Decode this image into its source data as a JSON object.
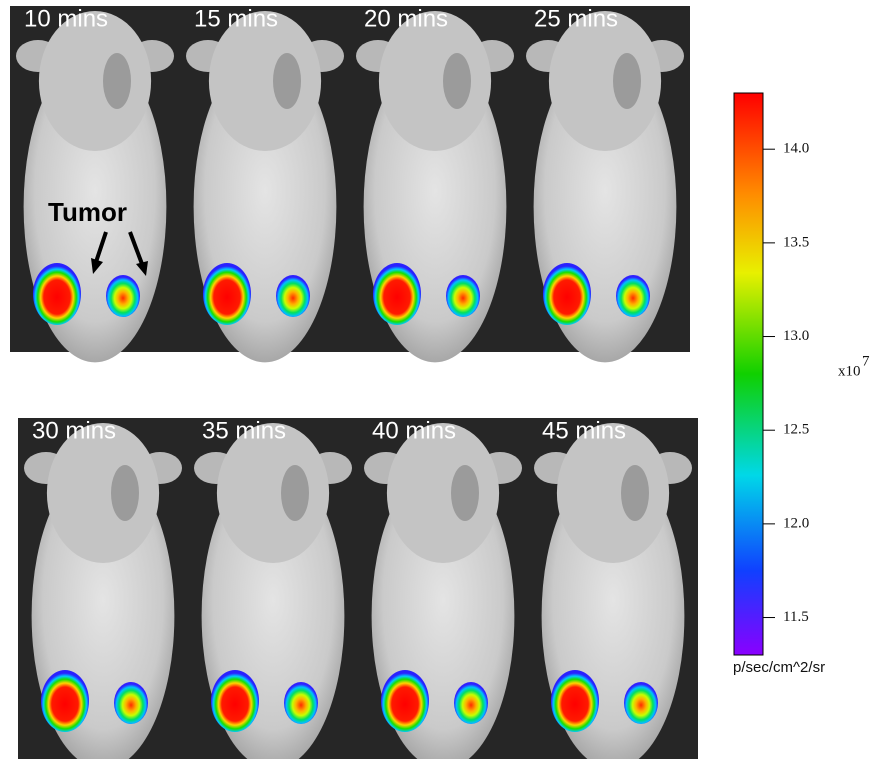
{
  "panels": {
    "top": [
      {
        "label": "10 mins"
      },
      {
        "label": "15 mins"
      },
      {
        "label": "20 mins"
      },
      {
        "label": "25 mins"
      }
    ],
    "bottom": [
      {
        "label": "30 mins"
      },
      {
        "label": "35 mins"
      },
      {
        "label": "40 mins"
      },
      {
        "label": "45 mins"
      }
    ]
  },
  "annotation": "Tumor",
  "colorbar": {
    "lim": [
      11.3,
      14.3
    ],
    "ticks": [
      {
        "value": 14,
        "label": "14.0"
      },
      13.5,
      {
        "value": 13,
        "label": "13.0"
      },
      12.5,
      {
        "value": 12,
        "label": "12.0"
      },
      11.5
    ],
    "multiplier": {
      "base": "x10",
      "exponent": "7"
    },
    "units": "p/sec/cm^2/sr"
  }
}
